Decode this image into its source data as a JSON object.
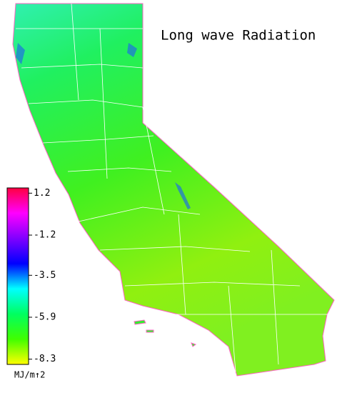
{
  "title": "Long wave Radiation",
  "colorbar": {
    "ticks": [
      1.2,
      -1.2,
      -3.5,
      -5.9,
      -8.3
    ],
    "lim": [
      -8.6,
      1.5
    ],
    "unit": "MJ/m↑2",
    "colors": [
      "#ff0040",
      "#ff00ff",
      "#8000ff",
      "#0000ff",
      "#00ffff",
      "#00ff60",
      "#40ff00",
      "#ffff00"
    ]
  }
}
